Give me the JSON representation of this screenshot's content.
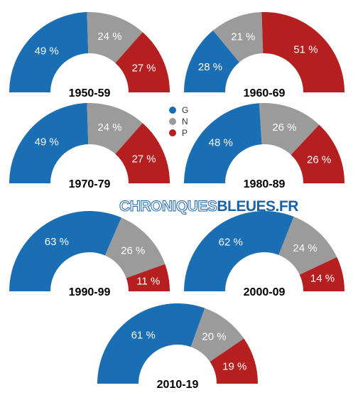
{
  "brand": {
    "part1": "CHRONIQUES",
    "part2": "BLEUES.FR"
  },
  "colors": {
    "G": "#1a6eb4",
    "N": "#9b9b9b",
    "P": "#b51f1f"
  },
  "chart_data": [
    {
      "type": "pie",
      "subtype": "half-donut",
      "title": "1950-59",
      "categories": [
        "G",
        "N",
        "P"
      ],
      "values": [
        49,
        24,
        27
      ],
      "labels": [
        "49 %",
        "24 %",
        "27 %"
      ]
    },
    {
      "type": "pie",
      "subtype": "half-donut",
      "title": "1960-69",
      "categories": [
        "G",
        "N",
        "P"
      ],
      "values": [
        28,
        21,
        51
      ],
      "labels": [
        "28 %",
        "21 %",
        "51 %"
      ]
    },
    {
      "type": "pie",
      "subtype": "half-donut",
      "title": "1970-79",
      "categories": [
        "G",
        "N",
        "P"
      ],
      "values": [
        49,
        24,
        27
      ],
      "labels": [
        "49 %",
        "24 %",
        "27 %"
      ]
    },
    {
      "type": "pie",
      "subtype": "half-donut",
      "title": "1980-89",
      "categories": [
        "G",
        "N",
        "P"
      ],
      "values": [
        48,
        26,
        26
      ],
      "labels": [
        "48 %",
        "26 %",
        "26 %"
      ]
    },
    {
      "type": "pie",
      "subtype": "half-donut",
      "title": "1990-99",
      "categories": [
        "G",
        "N",
        "P"
      ],
      "values": [
        63,
        26,
        11
      ],
      "labels": [
        "63 %",
        "26 %",
        "11 %"
      ]
    },
    {
      "type": "pie",
      "subtype": "half-donut",
      "title": "2000-09",
      "categories": [
        "G",
        "N",
        "P"
      ],
      "values": [
        62,
        24,
        14
      ],
      "labels": [
        "62 %",
        "24 %",
        "14 %"
      ]
    },
    {
      "type": "pie",
      "subtype": "half-donut",
      "title": "2010-19",
      "categories": [
        "G",
        "N",
        "P"
      ],
      "values": [
        61,
        20,
        19
      ],
      "labels": [
        "61 %",
        "20 %",
        "19 %"
      ]
    }
  ],
  "legend": [
    {
      "key": "G",
      "label": "G"
    },
    {
      "key": "N",
      "label": "N"
    },
    {
      "key": "P",
      "label": "P"
    }
  ]
}
